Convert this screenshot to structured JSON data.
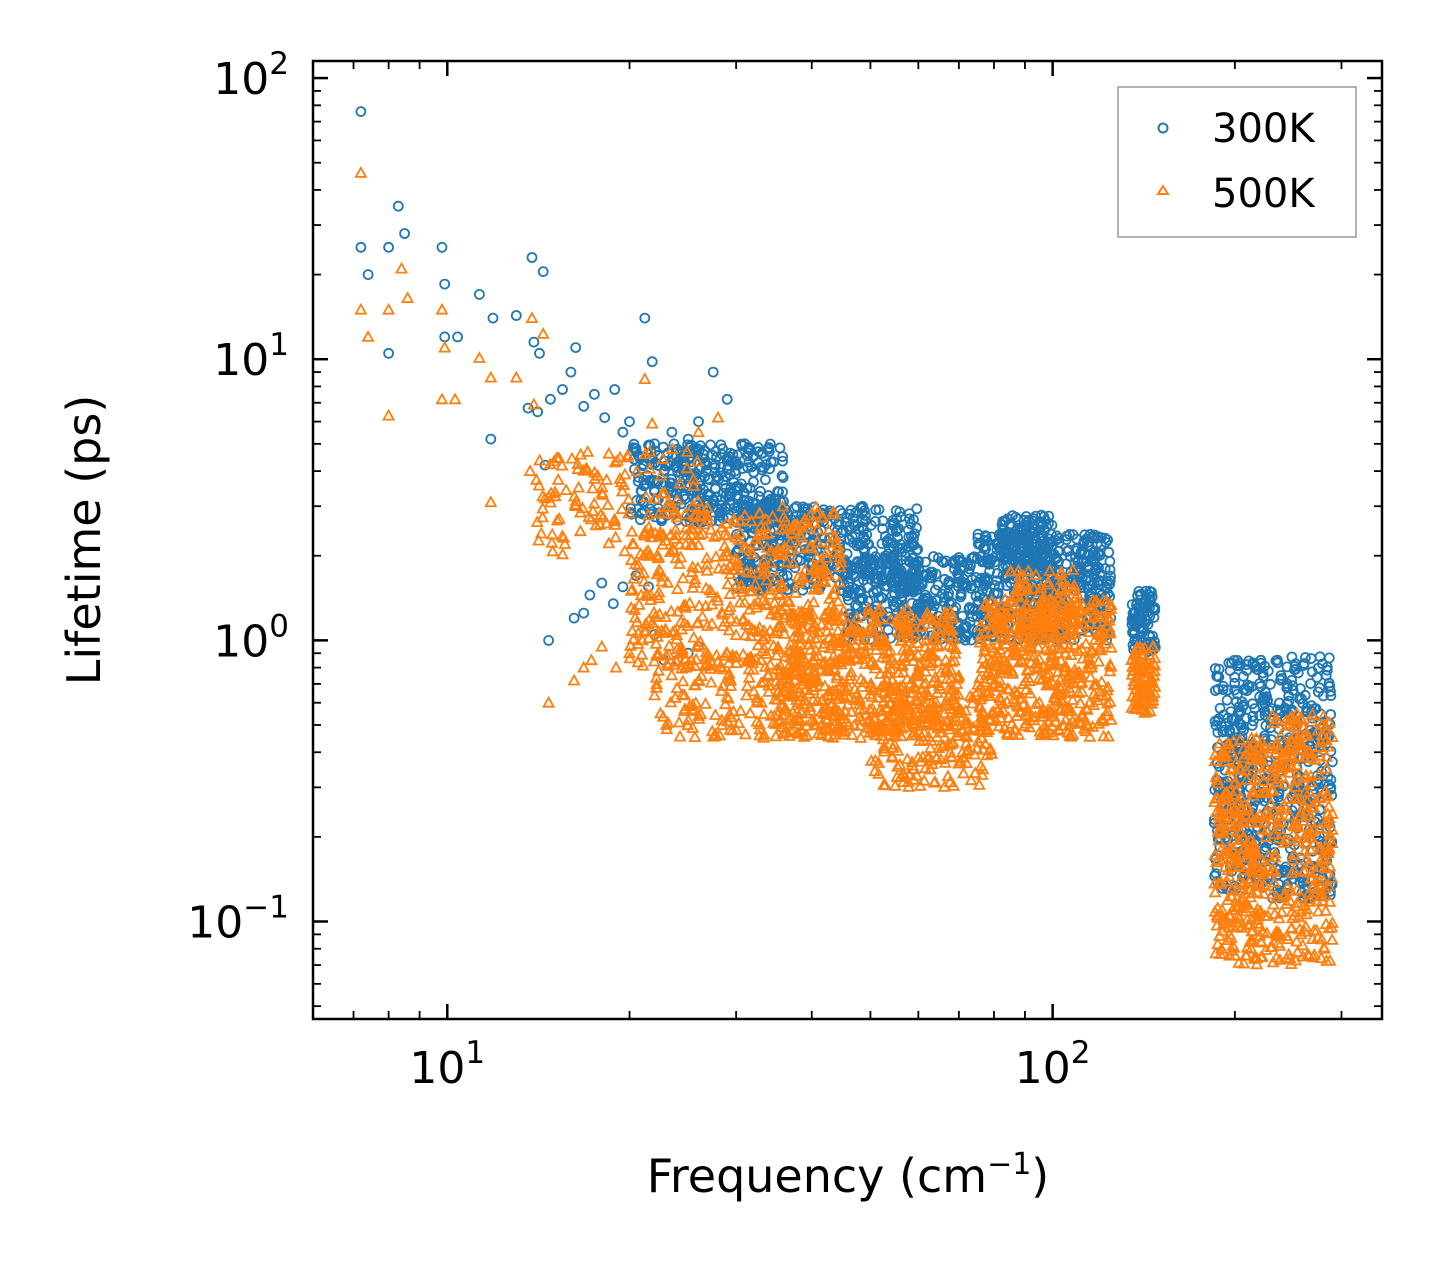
{
  "chart_data": {
    "type": "scatter",
    "title": "",
    "xlabel": "Frequency (cm",
    "xlabel_exp": "−1",
    "xlabel_close": ")",
    "ylabel": "Lifetime (ps)",
    "xscale": "log",
    "yscale": "log",
    "xlim": [
      6.0,
      350.0
    ],
    "ylim": [
      0.045,
      115.0
    ],
    "legend_position": "top-right",
    "x_major_ticks": [
      {
        "value": 10,
        "base": "10",
        "exp": "1"
      },
      {
        "value": 100,
        "base": "10",
        "exp": "2"
      }
    ],
    "y_major_ticks": [
      {
        "value": 0.1,
        "base": "10",
        "exp": "−1"
      },
      {
        "value": 1,
        "base": "10",
        "exp": "0"
      },
      {
        "value": 10,
        "base": "10",
        "exp": "1"
      },
      {
        "value": 100,
        "base": "10",
        "exp": "2"
      }
    ],
    "series": [
      {
        "name": "300K",
        "marker": "circle",
        "color": "#1f77b4",
        "points": [
          [
            7.2,
            76
          ],
          [
            7.2,
            25
          ],
          [
            7.4,
            20
          ],
          [
            8.0,
            25
          ],
          [
            8.0,
            10.5
          ],
          [
            8.3,
            35
          ],
          [
            8.5,
            28
          ],
          [
            9.8,
            25
          ],
          [
            9.9,
            18.5
          ],
          [
            9.9,
            12
          ],
          [
            10.4,
            12
          ],
          [
            11.3,
            17
          ],
          [
            11.9,
            14
          ],
          [
            11.8,
            5.2
          ],
          [
            13.0,
            14.3
          ],
          [
            13.8,
            23
          ],
          [
            13.9,
            11.5
          ],
          [
            14.4,
            20.5
          ],
          [
            14.2,
            10.5
          ],
          [
            13.6,
            6.7
          ],
          [
            14.1,
            6.5
          ],
          [
            14.5,
            4.2
          ],
          [
            14.7,
            1.0
          ],
          [
            14.8,
            7.2
          ],
          [
            15.5,
            7.8
          ],
          [
            16.0,
            9.0
          ],
          [
            16.3,
            11.0
          ],
          [
            16.8,
            6.8
          ],
          [
            17.5,
            7.5
          ],
          [
            18.2,
            6.2
          ],
          [
            18.9,
            7.8
          ],
          [
            19.5,
            5.5
          ],
          [
            20.0,
            6.0
          ],
          [
            21.2,
            14.0
          ],
          [
            21.8,
            9.8
          ],
          [
            21.0,
            4.5
          ],
          [
            22.0,
            5.0
          ],
          [
            23.5,
            5.5
          ],
          [
            24.5,
            4.5
          ],
          [
            25.0,
            5.2
          ],
          [
            26.0,
            6.0
          ],
          [
            27.5,
            9.0
          ],
          [
            28.5,
            4.8
          ],
          [
            29.0,
            7.2
          ],
          [
            30.0,
            4.2
          ],
          [
            31.0,
            5.0
          ],
          [
            32.0,
            4.5
          ],
          [
            16.2,
            1.2
          ],
          [
            16.8,
            1.25
          ],
          [
            17.2,
            1.45
          ],
          [
            18.0,
            1.6
          ],
          [
            18.8,
            1.35
          ],
          [
            19.5,
            1.55
          ],
          [
            20.5,
            1.7
          ],
          [
            21.5,
            1.55
          ],
          [
            22.0,
            1.05
          ],
          [
            22.8,
            0.85
          ],
          [
            24.0,
            0.85
          ],
          [
            25.0,
            0.9
          ],
          [
            26.0,
            0.95
          ]
        ],
        "clusters": [
          {
            "xmin": 20,
            "xmax": 36,
            "ylo": 2.6,
            "yhi": 5.0,
            "n": 360
          },
          {
            "xmin": 30,
            "xmax": 60,
            "ylo": 1.5,
            "yhi": 3.0,
            "n": 420
          },
          {
            "xmin": 45,
            "xmax": 75,
            "ylo": 1.0,
            "yhi": 2.0,
            "n": 340
          },
          {
            "xmin": 75,
            "xmax": 125,
            "ylo": 1.0,
            "yhi": 2.4,
            "n": 500
          },
          {
            "xmin": 82,
            "xmax": 100,
            "ylo": 1.8,
            "yhi": 2.8,
            "n": 140
          },
          {
            "xmin": 135,
            "xmax": 148,
            "ylo": 0.9,
            "yhi": 1.5,
            "n": 90
          },
          {
            "xmin": 185,
            "xmax": 230,
            "ylo": 0.13,
            "yhi": 0.85,
            "n": 340
          },
          {
            "xmin": 230,
            "xmax": 290,
            "ylo": 0.12,
            "yhi": 0.9,
            "n": 300
          }
        ]
      },
      {
        "name": "500K",
        "marker": "triangle",
        "color": "#ff7f0e",
        "points": [
          [
            7.2,
            46
          ],
          [
            7.2,
            15
          ],
          [
            7.4,
            12
          ],
          [
            8.0,
            15
          ],
          [
            8.0,
            6.3
          ],
          [
            8.4,
            21
          ],
          [
            8.6,
            16.5
          ],
          [
            9.8,
            15
          ],
          [
            9.9,
            11
          ],
          [
            9.8,
            7.2
          ],
          [
            10.3,
            7.2
          ],
          [
            11.3,
            10.1
          ],
          [
            11.8,
            8.6
          ],
          [
            11.8,
            3.1
          ],
          [
            13.0,
            8.6
          ],
          [
            13.8,
            14
          ],
          [
            13.9,
            6.9
          ],
          [
            14.4,
            12.3
          ],
          [
            13.7,
            4.0
          ],
          [
            14.5,
            3.2
          ],
          [
            14.3,
            2.4
          ],
          [
            14.7,
            0.6
          ],
          [
            16.2,
            0.72
          ],
          [
            16.8,
            0.8
          ],
          [
            17.3,
            0.85
          ],
          [
            18.0,
            0.95
          ],
          [
            19.0,
            0.8
          ],
          [
            20.0,
            0.9
          ],
          [
            21.0,
            1.0
          ],
          [
            21.2,
            8.5
          ],
          [
            21.8,
            5.9
          ],
          [
            22.5,
            0.55
          ],
          [
            23.0,
            0.5
          ],
          [
            25.0,
            0.52
          ],
          [
            28.0,
            6.2
          ],
          [
            26.0,
            5.5
          ]
        ],
        "clusters": [
          {
            "xmin": 14,
            "xmax": 26,
            "ylo": 2.0,
            "yhi": 4.8,
            "n": 120
          },
          {
            "xmin": 20,
            "xmax": 45,
            "ylo": 0.8,
            "yhi": 3.0,
            "n": 460
          },
          {
            "xmin": 22,
            "xmax": 45,
            "ylo": 0.45,
            "yhi": 0.9,
            "n": 180
          },
          {
            "xmin": 35,
            "xmax": 70,
            "ylo": 0.45,
            "yhi": 1.3,
            "n": 520
          },
          {
            "xmin": 50,
            "xmax": 80,
            "ylo": 0.3,
            "yhi": 0.7,
            "n": 220
          },
          {
            "xmin": 75,
            "xmax": 125,
            "ylo": 0.45,
            "yhi": 1.4,
            "n": 480
          },
          {
            "xmin": 85,
            "xmax": 110,
            "ylo": 1.0,
            "yhi": 1.8,
            "n": 90
          },
          {
            "xmin": 135,
            "xmax": 148,
            "ylo": 0.55,
            "yhi": 0.95,
            "n": 90
          },
          {
            "xmin": 185,
            "xmax": 230,
            "ylo": 0.07,
            "yhi": 0.45,
            "n": 300
          },
          {
            "xmin": 230,
            "xmax": 290,
            "ylo": 0.07,
            "yhi": 0.55,
            "n": 280
          }
        ]
      }
    ]
  }
}
